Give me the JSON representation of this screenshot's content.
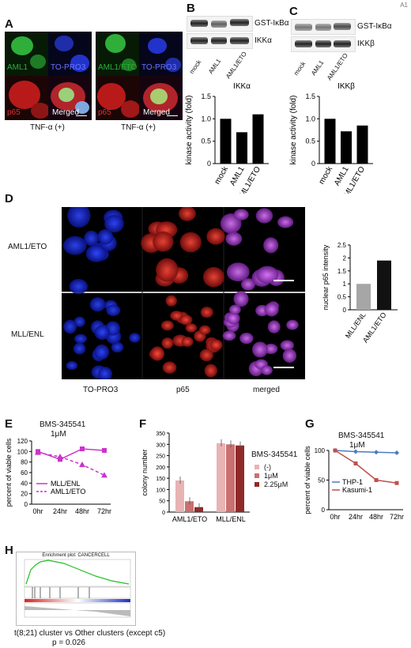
{
  "corner_label": "A1",
  "panelA": {
    "label": "A",
    "left": {
      "top_left": "AML1",
      "top_right": "TO-PRO3",
      "bottom_left": "p65",
      "bottom_right": "Merged",
      "caption": "TNF-α (+)"
    },
    "right": {
      "top_left": "AML1/ETO",
      "top_right": "TO-PRO3",
      "bottom_left": "p65",
      "bottom_right": "Merged",
      "caption": "TNF-α (+)"
    },
    "colors": {
      "green": "#2fae3a",
      "blue": "#2233cc",
      "red": "#cc2020"
    }
  },
  "panelB": {
    "label": "B",
    "blot_labels": [
      "GST-IκBα",
      "IKKα"
    ],
    "lane_labels": [
      "mock",
      "AML1",
      "AML1/ETO"
    ],
    "chart_data": {
      "type": "bar",
      "title": "IKKα",
      "categories": [
        "mock",
        "AML1",
        "AML1/ETO"
      ],
      "values": [
        1.0,
        0.7,
        1.1
      ],
      "ylabel": "kinase activity (fold)",
      "ylim": [
        0,
        1.5
      ],
      "yticks": [
        "0",
        "0.5",
        "1.0",
        "1.5"
      ]
    }
  },
  "panelC": {
    "label": "C",
    "blot_labels": [
      "GST-IκBα",
      "IKKβ"
    ],
    "lane_labels": [
      "mock",
      "AML1",
      "AML1/ETO"
    ],
    "chart_data": {
      "type": "bar",
      "title": "IKKβ",
      "categories": [
        "mock",
        "AML1",
        "AML1/ETO"
      ],
      "values": [
        1.0,
        0.72,
        0.85
      ],
      "ylabel": "kinase activity (fold)",
      "ylim": [
        0,
        1.5
      ],
      "yticks": [
        "0",
        "0.5",
        "1.0",
        "1.5"
      ]
    }
  },
  "panelD": {
    "label": "D",
    "row_labels": [
      "AML1/ETO",
      "MLL/ENL"
    ],
    "column_labels": [
      "TO-PRO3",
      "p65",
      "merged"
    ],
    "chart_data": {
      "type": "bar",
      "categories": [
        "MLL/ENL",
        "AML1/ETO"
      ],
      "values": [
        1.0,
        1.9
      ],
      "ylabel": "nuclear p65 intensity",
      "ylim": [
        0,
        2.5
      ],
      "yticks": [
        "0",
        "0.5",
        "1",
        "1.5",
        "2",
        "2.5"
      ],
      "colors": [
        "#a6a6a6",
        "#111111"
      ]
    }
  },
  "panelE": {
    "label": "E",
    "title_lines": [
      "BMS-345541",
      "1μM"
    ],
    "chart_data": {
      "type": "line",
      "title": "BMS-345541 1μM",
      "x": [
        "0hr",
        "24hr",
        "48hr",
        "72hr"
      ],
      "ylabel": "percent of viable cells",
      "ylim": [
        0,
        120
      ],
      "yticks": [
        "0",
        "20",
        "40",
        "60",
        "80",
        "100",
        "120"
      ],
      "series": [
        {
          "name": "MLL/ENL",
          "values": [
            100,
            85,
            105,
            102
          ],
          "style": "solid"
        },
        {
          "name": "AML1/ETO",
          "values": [
            98,
            90,
            75,
            55
          ],
          "style": "dashed"
        }
      ],
      "color": "#cc33cc"
    }
  },
  "panelF": {
    "label": "F",
    "legend_title": "BMS-345541",
    "chart_data": {
      "type": "bar",
      "categories": [
        "AML1/ETO",
        "MLL/ENL"
      ],
      "ylabel": "colony number",
      "ylim": [
        0,
        350
      ],
      "yticks": [
        "0",
        "50",
        "100",
        "150",
        "200",
        "250",
        "300",
        "350"
      ],
      "series": [
        {
          "name": "(-)",
          "values": [
            140,
            305
          ],
          "color": "#e8b3b3"
        },
        {
          "name": "1μM",
          "values": [
            48,
            300
          ],
          "color": "#c97070"
        },
        {
          "name": "2.25μM",
          "values": [
            22,
            295
          ],
          "color": "#8f2a2a"
        }
      ]
    }
  },
  "panelG": {
    "label": "G",
    "title_lines": [
      "BMS-345541",
      "1μM"
    ],
    "chart_data": {
      "type": "line",
      "title": "BMS-345541 1μM",
      "x": [
        "0hr",
        "24hr",
        "48hr",
        "72hr"
      ],
      "ylabel": "percent of viable cells",
      "ylim": [
        0,
        100
      ],
      "yticks": [
        "0",
        "50",
        "100"
      ],
      "series": [
        {
          "name": "THP-1",
          "values": [
            100,
            98,
            97,
            96
          ],
          "color": "#4a7cc0"
        },
        {
          "name": "Kasumi-1",
          "values": [
            100,
            78,
            50,
            45
          ],
          "color": "#c0504d"
        }
      ]
    }
  },
  "panelH": {
    "label": "H",
    "plot_title": "Enrichment plot: CANCERCELL",
    "caption_lines": [
      "t(8;21) cluster vs Other clusters (except c5)",
      "p = 0.026"
    ]
  }
}
